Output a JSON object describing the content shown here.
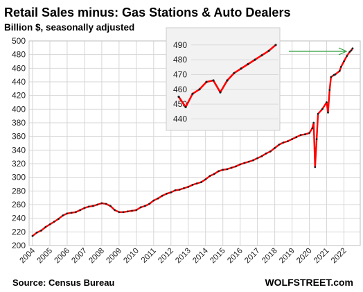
{
  "chart_data": [
    {
      "type": "line",
      "title": "Retail Sales minus: Gas Stations & Auto Dealers",
      "subtitle": "Billion $, seasonally adjusted",
      "source": "Source: Census Bureau",
      "brand": "WOLFSTREET.com",
      "ylim": [
        200,
        500
      ],
      "yticks": [
        200,
        220,
        240,
        260,
        280,
        300,
        320,
        340,
        360,
        380,
        400,
        420,
        440,
        460,
        480,
        500
      ],
      "xlim": [
        2004,
        2022.5
      ],
      "xticks": [
        "2004",
        "2005",
        "2006",
        "2007",
        "2008",
        "2009",
        "2010",
        "2011",
        "2012",
        "2013",
        "2014",
        "2015",
        "2016",
        "2017",
        "2018",
        "2019",
        "2020",
        "2021",
        "2022"
      ],
      "grid": true,
      "line_color": "#ff0000",
      "marker_color": "#222222",
      "series": [
        {
          "x": [
            2004.0,
            2004.25,
            2004.5,
            2004.75,
            2005.0,
            2005.25,
            2005.5,
            2005.75,
            2006.0,
            2006.25,
            2006.5,
            2006.75,
            2007.0,
            2007.25,
            2007.5,
            2007.75,
            2008.0,
            2008.25,
            2008.5,
            2008.75,
            2009.0,
            2009.25,
            2009.5,
            2009.75,
            2010.0,
            2010.25,
            2010.5,
            2010.75,
            2011.0,
            2011.25,
            2011.5,
            2011.75,
            2012.0,
            2012.25,
            2012.5,
            2012.75,
            2013.0,
            2013.25,
            2013.5,
            2013.75,
            2014.0,
            2014.25,
            2014.5,
            2014.75,
            2015.0,
            2015.25,
            2015.5,
            2015.75,
            2016.0,
            2016.25,
            2016.5,
            2016.75,
            2017.0,
            2017.25,
            2017.5,
            2017.75,
            2018.0,
            2018.25,
            2018.5,
            2018.75,
            2019.0,
            2019.25,
            2019.5,
            2019.75,
            2020.0,
            2020.17,
            2020.25,
            2020.33,
            2020.42,
            2020.5,
            2020.75,
            2021.0,
            2021.08,
            2021.17,
            2021.25,
            2021.42,
            2021.5,
            2021.75,
            2021.83,
            2022.0,
            2022.17,
            2022.33,
            2022.42,
            2022.5
          ],
          "y": [
            214,
            219,
            222,
            227,
            231,
            235,
            239,
            244,
            247,
            248,
            249,
            252,
            255,
            257,
            258,
            260,
            262,
            261,
            258,
            252,
            249,
            249,
            250,
            251,
            252,
            256,
            258,
            261,
            266,
            269,
            273,
            276,
            278,
            281,
            282,
            284,
            286,
            289,
            291,
            293,
            297,
            302,
            305,
            309,
            311,
            312,
            314,
            316,
            319,
            321,
            323,
            325,
            328,
            331,
            335,
            338,
            343,
            348,
            351,
            353,
            356,
            359,
            362,
            363,
            365,
            372,
            380,
            315,
            356,
            393,
            400,
            410,
            395,
            428,
            447,
            450,
            451,
            456,
            462,
            470,
            478,
            484,
            486,
            489
          ]
        }
      ]
    },
    {
      "type": "line",
      "title": "",
      "ylim": [
        436,
        496
      ],
      "yticks": [
        440,
        450,
        460,
        470,
        480,
        490
      ],
      "grid": true,
      "series": [
        {
          "x": [
            0,
            1,
            2,
            3,
            4,
            5,
            6,
            7,
            8,
            9,
            10,
            11,
            12,
            13,
            14
          ],
          "y": [
            455,
            448,
            457,
            460,
            465,
            466,
            458,
            466,
            471,
            474,
            477,
            480,
            483,
            486,
            490
          ]
        }
      ]
    }
  ]
}
